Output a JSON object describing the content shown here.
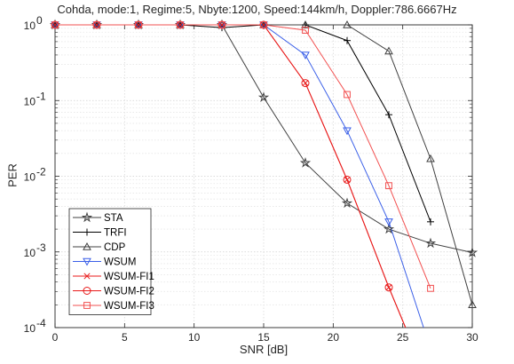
{
  "chart_data": {
    "type": "line",
    "title": "Cohda, mode:1, Regime:5, Nbyte:1200, Speed:144km/h, Doppler:786.6667Hz",
    "xlabel": "SNR [dB]",
    "ylabel": "PER",
    "x_scale": "linear",
    "y_scale": "log",
    "xlim": [
      0,
      30
    ],
    "ylim": [
      0.0001,
      1
    ],
    "x_ticks": [
      0,
      5,
      10,
      15,
      20,
      25,
      30
    ],
    "x_tick_labels": [
      "0",
      "5",
      "10",
      "15",
      "20",
      "25",
      "30"
    ],
    "y_ticks": [
      0.0001,
      0.001,
      0.01,
      0.1,
      1
    ],
    "y_tick_labels": [
      {
        "base": "10",
        "exp": "-4"
      },
      {
        "base": "10",
        "exp": "-3"
      },
      {
        "base": "10",
        "exp": "-2"
      },
      {
        "base": "10",
        "exp": "-1"
      },
      {
        "base": "10",
        "exp": "0"
      }
    ],
    "grid": true,
    "legend_position": "bottom-left",
    "series": [
      {
        "name": "STA",
        "color": "#404040",
        "marker": "star",
        "x": [
          0,
          3,
          6,
          9,
          12,
          15,
          18,
          21,
          24,
          27,
          30
        ],
        "y": [
          1,
          1,
          1,
          1,
          1,
          0.11,
          0.015,
          0.0044,
          0.002,
          0.0013,
          0.00098
        ]
      },
      {
        "name": "TRFI",
        "color": "#000000",
        "marker": "plus",
        "x": [
          0,
          3,
          6,
          9,
          12,
          15,
          18,
          21,
          24,
          27
        ],
        "y": [
          1,
          1,
          1,
          1,
          0.92,
          1,
          1,
          0.62,
          0.065,
          0.0025
        ]
      },
      {
        "name": "CDP",
        "color": "#404040",
        "marker": "triangle-up",
        "x": [
          0,
          3,
          6,
          9,
          12,
          15,
          18,
          21,
          24,
          27,
          30
        ],
        "y": [
          1,
          1,
          1,
          1,
          1,
          1,
          1,
          1,
          0.45,
          0.017,
          0.0002
        ]
      },
      {
        "name": "WSUM",
        "color": "#3a5fe8",
        "marker": "triangle-down",
        "x": [
          0,
          3,
          6,
          9,
          12,
          15,
          18,
          21,
          24,
          26.5
        ],
        "y": [
          1,
          1,
          1,
          1,
          1,
          1,
          0.4,
          0.04,
          0.0025,
          0.0001
        ]
      },
      {
        "name": "WSUM-FI1",
        "color": "#e81a1a",
        "marker": "cross",
        "x": [
          0,
          3,
          6,
          9,
          12,
          15,
          18,
          21,
          24,
          25.2
        ],
        "y": [
          1,
          1,
          1,
          1,
          1,
          1,
          0.17,
          0.009,
          0.00034,
          0.0001
        ]
      },
      {
        "name": "WSUM-FI2",
        "color": "#e81a1a",
        "marker": "circle",
        "x": [
          0,
          3,
          6,
          9,
          12,
          15,
          18,
          21,
          24,
          25.2
        ],
        "y": [
          1,
          1,
          1,
          1,
          1,
          1,
          0.17,
          0.009,
          0.00034,
          0.0001
        ]
      },
      {
        "name": "WSUM-FI3",
        "color": "#f25050",
        "marker": "square",
        "x": [
          0,
          3,
          6,
          9,
          12,
          15,
          18,
          21,
          24,
          27
        ],
        "y": [
          1,
          1,
          1,
          1,
          1,
          1,
          0.85,
          0.12,
          0.0075,
          0.00033
        ]
      }
    ]
  }
}
